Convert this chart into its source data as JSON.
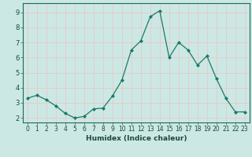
{
  "x": [
    0,
    1,
    2,
    3,
    4,
    5,
    6,
    7,
    8,
    9,
    10,
    11,
    12,
    13,
    14,
    15,
    16,
    17,
    18,
    19,
    20,
    21,
    22,
    23
  ],
  "y": [
    3.3,
    3.5,
    3.2,
    2.8,
    2.3,
    2.0,
    2.1,
    2.6,
    2.65,
    3.45,
    4.5,
    6.5,
    7.1,
    8.7,
    9.1,
    6.0,
    7.0,
    6.5,
    5.5,
    6.1,
    4.6,
    3.3,
    2.4,
    2.4
  ],
  "line_color": "#1a7a6a",
  "marker_color": "#1a7a6a",
  "bg_color": "#cce8e4",
  "grid_color": "#e8c8c8",
  "xlabel": "Humidex (Indice chaleur)",
  "ylim": [
    1.7,
    9.6
  ],
  "xlim": [
    -0.5,
    23.5
  ],
  "yticks": [
    2,
    3,
    4,
    5,
    6,
    7,
    8,
    9
  ],
  "xticks": [
    0,
    1,
    2,
    3,
    4,
    5,
    6,
    7,
    8,
    9,
    10,
    11,
    12,
    13,
    14,
    15,
    16,
    17,
    18,
    19,
    20,
    21,
    22,
    23
  ],
  "tick_fontsize": 5.5,
  "xlabel_fontsize": 6.5
}
